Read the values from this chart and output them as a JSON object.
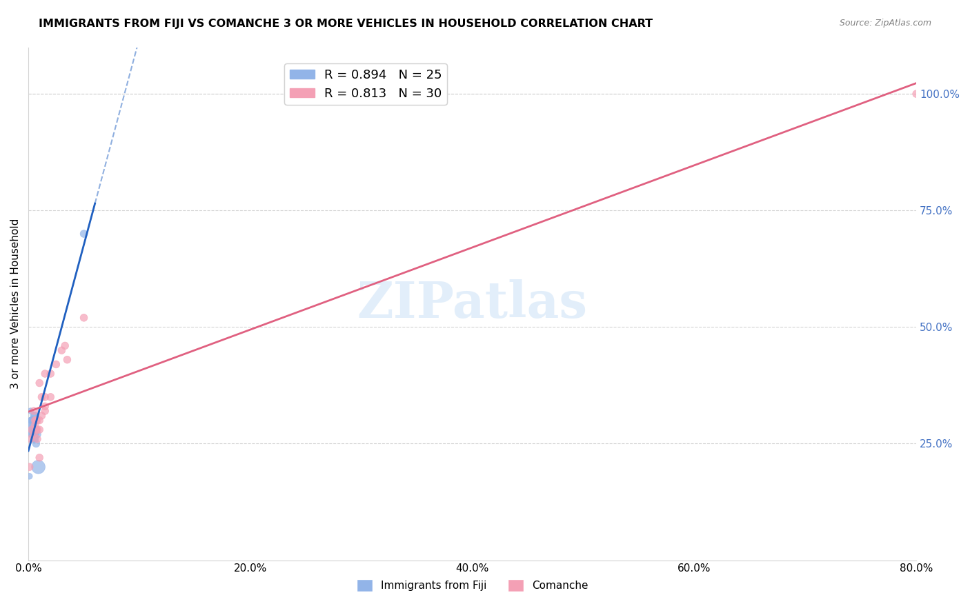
{
  "title": "IMMIGRANTS FROM FIJI VS COMANCHE 3 OR MORE VEHICLES IN HOUSEHOLD CORRELATION CHART",
  "source": "Source: ZipAtlas.com",
  "ylabel": "3 or more Vehicles in Household",
  "xlabel_ticks": [
    "0.0%",
    "20.0%",
    "40.0%",
    "60.0%",
    "80.0%"
  ],
  "xlabel_vals": [
    0.0,
    0.2,
    0.4,
    0.6,
    0.8
  ],
  "ylabel_ticks_right": [
    "100.0%",
    "75.0%",
    "50.0%",
    "25.0%"
  ],
  "ylabel_vals_right": [
    1.0,
    0.75,
    0.5,
    0.25
  ],
  "xlim": [
    0.0,
    0.8
  ],
  "ylim": [
    0.0,
    1.1
  ],
  "legend_fiji_R": "0.894",
  "legend_fiji_N": "25",
  "legend_comanche_R": "0.813",
  "legend_comanche_N": "30",
  "fiji_color": "#92b4e8",
  "comanche_color": "#f4a0b5",
  "fiji_line_color": "#2060c0",
  "comanche_line_color": "#e06080",
  "watermark": "ZIPatlas",
  "fiji_x": [
    0.001,
    0.002,
    0.002,
    0.003,
    0.003,
    0.003,
    0.003,
    0.004,
    0.004,
    0.004,
    0.004,
    0.005,
    0.005,
    0.005,
    0.005,
    0.006,
    0.006,
    0.006,
    0.006,
    0.007,
    0.007,
    0.007,
    0.008,
    0.009,
    0.05
  ],
  "fiji_y": [
    0.18,
    0.32,
    0.3,
    0.3,
    0.29,
    0.28,
    0.27,
    0.3,
    0.29,
    0.28,
    0.27,
    0.31,
    0.28,
    0.27,
    0.26,
    0.31,
    0.28,
    0.27,
    0.26,
    0.3,
    0.28,
    0.25,
    0.27,
    0.2,
    0.7
  ],
  "fiji_sizes": [
    40,
    40,
    40,
    60,
    60,
    60,
    60,
    60,
    60,
    60,
    60,
    60,
    60,
    60,
    60,
    60,
    60,
    60,
    60,
    60,
    60,
    60,
    60,
    200,
    60
  ],
  "comanche_x": [
    0.001,
    0.002,
    0.003,
    0.005,
    0.005,
    0.006,
    0.006,
    0.007,
    0.007,
    0.008,
    0.008,
    0.008,
    0.01,
    0.01,
    0.01,
    0.012,
    0.012,
    0.015,
    0.015,
    0.015,
    0.015,
    0.02,
    0.02,
    0.025,
    0.03,
    0.033,
    0.035,
    0.05,
    0.8,
    0.01
  ],
  "comanche_y": [
    0.2,
    0.26,
    0.28,
    0.32,
    0.27,
    0.3,
    0.29,
    0.3,
    0.28,
    0.3,
    0.28,
    0.26,
    0.3,
    0.38,
    0.28,
    0.35,
    0.31,
    0.4,
    0.35,
    0.33,
    0.32,
    0.4,
    0.35,
    0.42,
    0.45,
    0.46,
    0.43,
    0.52,
    1.0,
    0.22
  ],
  "comanche_sizes": [
    60,
    60,
    60,
    60,
    60,
    60,
    60,
    60,
    60,
    60,
    60,
    60,
    60,
    60,
    60,
    60,
    60,
    60,
    60,
    60,
    60,
    60,
    60,
    60,
    60,
    60,
    60,
    60,
    60,
    60
  ]
}
